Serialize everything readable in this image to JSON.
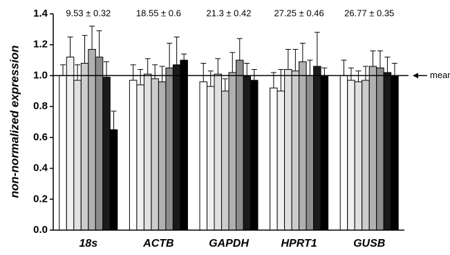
{
  "chart_data": {
    "type": "bar",
    "ylabel": "non-normalized expression",
    "categories": [
      "18s",
      "ACTB",
      "GAPDH",
      "HPRT1",
      "GUSB"
    ],
    "annotations": [
      "9.53 ± 0.32",
      "18.55 ± 0.6",
      "21.3 ± 0.42",
      "27.25 ± 0.46",
      "26.77 ± 0.35"
    ],
    "series": [
      {
        "color": "#ffffff",
        "values": [
          1.0,
          0.97,
          0.96,
          0.92,
          1.0
        ],
        "errors": [
          0.07,
          0.1,
          0.12,
          0.1,
          0.1
        ]
      },
      {
        "color": "#f0f0f0",
        "values": [
          1.12,
          0.94,
          0.93,
          0.9,
          0.97
        ],
        "errors": [
          0.13,
          0.1,
          0.1,
          0.14,
          0.08
        ]
      },
      {
        "color": "#e0e0e0",
        "values": [
          0.97,
          1.01,
          1.01,
          1.04,
          0.96
        ],
        "errors": [
          0.1,
          0.1,
          0.1,
          0.13,
          0.07
        ]
      },
      {
        "color": "#cccccc",
        "values": [
          1.08,
          0.98,
          0.9,
          1.03,
          0.97
        ],
        "errors": [
          0.18,
          0.09,
          0.08,
          0.14,
          0.09
        ]
      },
      {
        "color": "#b0b0b0",
        "values": [
          1.17,
          0.96,
          1.02,
          1.09,
          1.06
        ],
        "errors": [
          0.15,
          0.1,
          0.13,
          0.12,
          0.1
        ]
      },
      {
        "color": "#8c8c8c",
        "values": [
          1.12,
          1.05,
          1.1,
          1.0,
          1.05
        ],
        "errors": [
          0.17,
          0.16,
          0.14,
          0.1,
          0.11
        ]
      },
      {
        "color": "#1a1a1a",
        "values": [
          0.99,
          1.07,
          1.0,
          1.06,
          1.02
        ],
        "errors": [
          0.1,
          0.18,
          0.08,
          0.22,
          0.1
        ]
      },
      {
        "color": "#000000",
        "values": [
          0.65,
          1.1,
          0.97,
          1.0,
          1.0
        ],
        "errors": [
          0.12,
          0.04,
          0.07,
          0.05,
          0.08
        ]
      }
    ],
    "reference_line": 1.0,
    "reference_label": "mean",
    "ylim": [
      0,
      1.4
    ],
    "yticks": [
      {
        "value": 0,
        "label": "0.0"
      },
      0.2,
      0.4,
      0.6,
      0.8,
      {
        "value": 1,
        "label": "1.0"
      },
      1.2,
      1.4
    ],
    "grid": false
  }
}
